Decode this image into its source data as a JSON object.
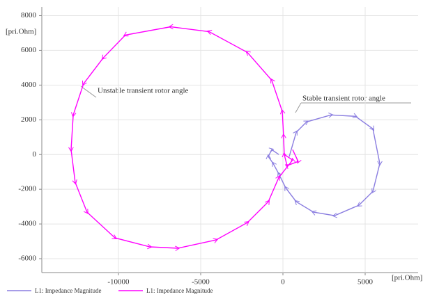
{
  "chart_data": {
    "type": "line",
    "xlabel": "[pri.Ohm]",
    "ylabel": "[pri.Ohm]",
    "xlim": [
      -14660,
      8220
    ],
    "ylim": [
      -6800,
      8500
    ],
    "xticks": [
      -10000,
      -5000,
      0,
      5000
    ],
    "yticks": [
      8000,
      6000,
      4000,
      2000,
      0,
      -2000,
      -4000,
      -6000
    ],
    "grid": true,
    "annotations": [
      "Unstable transient rotor angle",
      "Stable transient rotor angle"
    ],
    "series": [
      {
        "name": "L1: Impedance Magnitude",
        "color": "#8a7de0",
        "x": [
          380,
          810,
          1440,
          2920,
          4410,
          5470,
          5890,
          5470,
          4620,
          3140,
          1860,
          810,
          170,
          -250,
          -590,
          -890,
          -680,
          -250
        ],
        "values": [
          -120,
          1280,
          1880,
          2280,
          2200,
          1480,
          -520,
          -2120,
          -2920,
          -3520,
          -3320,
          -2720,
          -1920,
          -1120,
          -520,
          -120,
          280,
          0
        ]
      },
      {
        "name": "L1: Impedance Magnitude",
        "color": "#ff00ff",
        "x": [
          590,
          930,
          250,
          80,
          40,
          -40,
          -680,
          -2160,
          -4490,
          -6820,
          -9580,
          -10930,
          -12120,
          -12750,
          -12880,
          -12630,
          -11910,
          -10210,
          -8090,
          -6400,
          -4070,
          -2160,
          -890,
          -250,
          590,
          80
        ],
        "values": [
          280,
          -400,
          -640,
          0,
          1080,
          2480,
          4280,
          5880,
          7080,
          7360,
          6880,
          5560,
          4080,
          2280,
          280,
          -1600,
          -3320,
          -4800,
          -5320,
          -5400,
          -4920,
          -3920,
          -2720,
          -1320,
          -320,
          0
        ]
      }
    ]
  }
}
